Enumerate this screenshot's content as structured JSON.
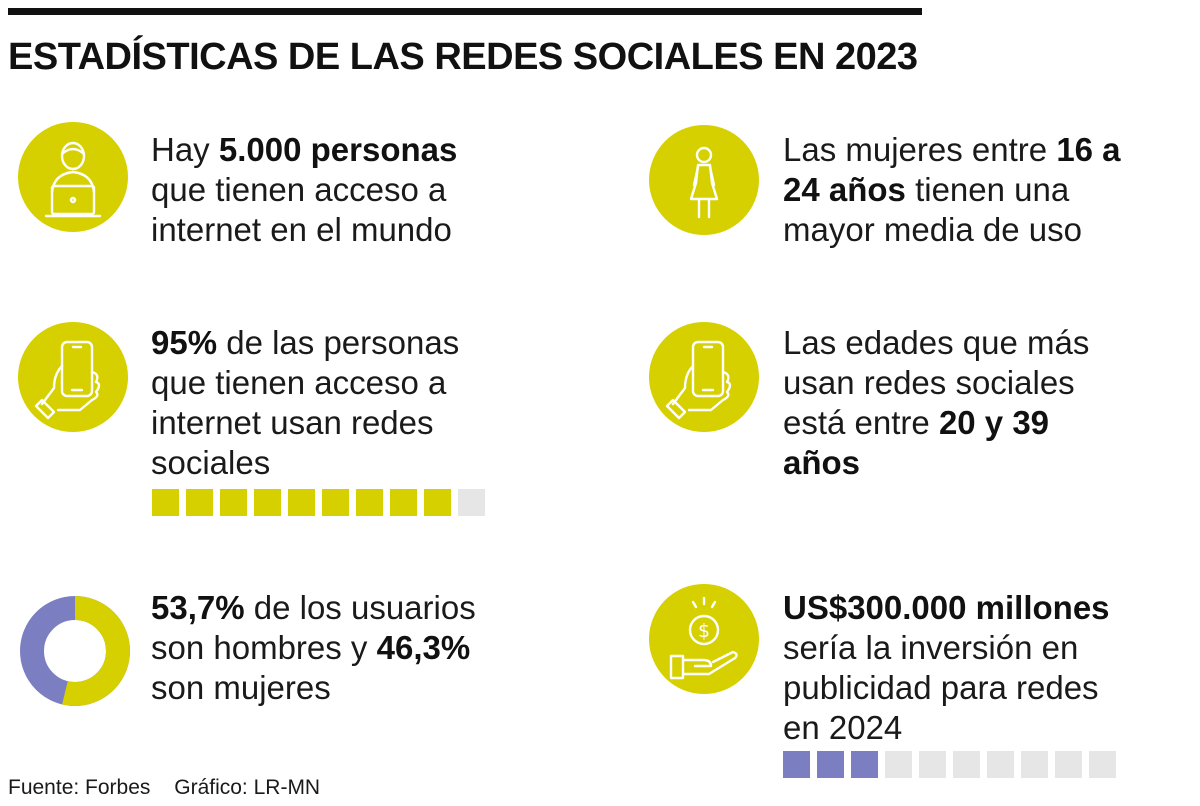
{
  "title": "ESTADÍSTICAS DE LAS REDES SOCIALES EN 2023",
  "colors": {
    "accent": "#d6d000",
    "secondary": "#7b7fc1",
    "empty": "#e6e6e6",
    "icon_line": "#ffffff"
  },
  "items": {
    "internet": {
      "icon": "person-laptop-icon",
      "lines": [
        [
          {
            "t": "Hay "
          },
          {
            "t": "5.000 personas",
            "b": true
          }
        ],
        [
          {
            "t": "que tienen acceso a"
          }
        ],
        [
          {
            "t": "internet en el mundo"
          }
        ]
      ]
    },
    "women": {
      "icon": "woman-icon",
      "lines": [
        [
          {
            "t": "Las mujeres entre "
          },
          {
            "t": "16 a",
            "b": true
          }
        ],
        [
          {
            "t": "24 años",
            "b": true
          },
          {
            "t": " tienen una"
          }
        ],
        [
          {
            "t": "mayor media de uso"
          }
        ]
      ]
    },
    "social": {
      "icon": "hand-phone-icon",
      "lines": [
        [
          {
            "t": "95%",
            "b": true
          },
          {
            "t": " de las personas"
          }
        ],
        [
          {
            "t": "que tienen acceso a"
          }
        ],
        [
          {
            "t": "internet usan redes"
          }
        ],
        [
          {
            "t": "sociales"
          }
        ]
      ],
      "bar": {
        "filled": 9,
        "total": 10,
        "color": "#d6d000"
      }
    },
    "ages": {
      "icon": "hand-phone-icon",
      "lines": [
        [
          {
            "t": "Las edades que más"
          }
        ],
        [
          {
            "t": "usan redes sociales"
          }
        ],
        [
          {
            "t": "está entre "
          },
          {
            "t": "20 y 39",
            "b": true
          }
        ],
        [
          {
            "t": "años",
            "b": true
          }
        ]
      ]
    },
    "gender": {
      "icon": "donut-chart",
      "donut": {
        "men_percent": 53.7,
        "women_percent": 46.3
      },
      "lines": [
        [
          {
            "t": "53,7%",
            "b": true
          },
          {
            "t": " de los usuarios"
          }
        ],
        [
          {
            "t": "son hombres y "
          },
          {
            "t": "46,3%",
            "b": true
          }
        ],
        [
          {
            "t": "son mujeres"
          }
        ]
      ]
    },
    "ads": {
      "icon": "hand-coin-icon",
      "lines": [
        [
          {
            "t": "US$300.000 millones",
            "b": true
          }
        ],
        [
          {
            "t": "sería la inversión en"
          }
        ],
        [
          {
            "t": "publicidad para redes"
          }
        ],
        [
          {
            "t": "en 2024"
          }
        ]
      ],
      "bar": {
        "filled": 3,
        "total": 10,
        "color": "#7b7fc1"
      }
    }
  },
  "source": {
    "fuente": "Fuente: Forbes",
    "grafico": "Gráfico: LR-MN"
  }
}
